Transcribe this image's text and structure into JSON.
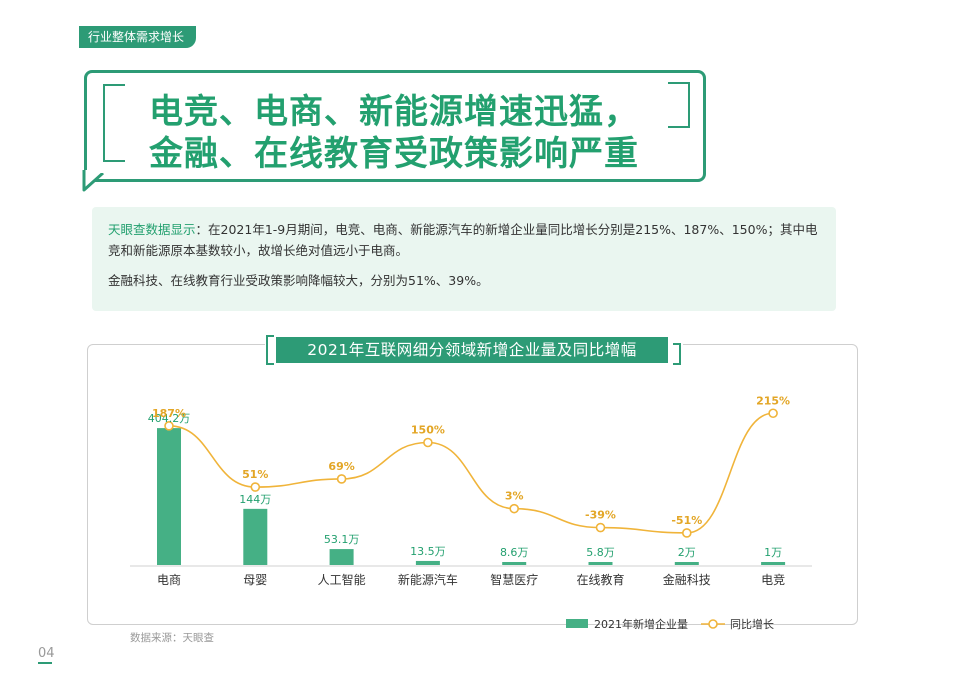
{
  "section_tag": "行业整体需求增长",
  "headline": {
    "line1": "电竞、电商、新能源增速迅猛，",
    "line2": "金融、在线教育受政策影响严重"
  },
  "summary": {
    "lead": "天眼查数据显示",
    "para1": "：在2021年1-9月期间，电竞、电商、新能源汽车的新增企业量同比增长分别是215%、187%、150%；其中电竞和新能源原本基数较小，故增长绝对值远小于电商。",
    "para2": "金融科技、在线教育行业受政策影响降幅较大，分别为51%、39%。"
  },
  "source": "数据来源：天眼查",
  "page_number": "04",
  "colors": {
    "bar": "#45b085",
    "line": "#f0b43a",
    "accent": "#2d9b76",
    "label_green": "#23a06f",
    "label_orange": "#e3a626"
  },
  "chart_data": {
    "type": "bar",
    "title": "2021年互联网细分领域新增企业量及同比增幅",
    "categories": [
      "电商",
      "母婴",
      "人工智能",
      "新能源汽车",
      "智慧医疗",
      "在线教育",
      "金融科技",
      "电竞"
    ],
    "series": [
      {
        "name": "2021年新增企业量",
        "type": "bar",
        "unit": "万",
        "values": [
          404.2,
          144,
          53.1,
          13.5,
          8.6,
          5.8,
          2,
          1
        ],
        "labels": [
          "404.2万",
          "144万",
          "53.1万",
          "13.5万",
          "8.6万",
          "5.8万",
          "2万",
          "1万"
        ]
      },
      {
        "name": "同比增长",
        "type": "line",
        "unit": "%",
        "values": [
          187,
          51,
          69,
          150,
          3,
          -39,
          -51,
          215
        ],
        "labels": [
          "187%",
          "51%",
          "69%",
          "150%",
          "3%",
          "-39%",
          "-51%",
          "215%"
        ]
      }
    ],
    "legend_position": "bottom-right",
    "grid": false
  }
}
